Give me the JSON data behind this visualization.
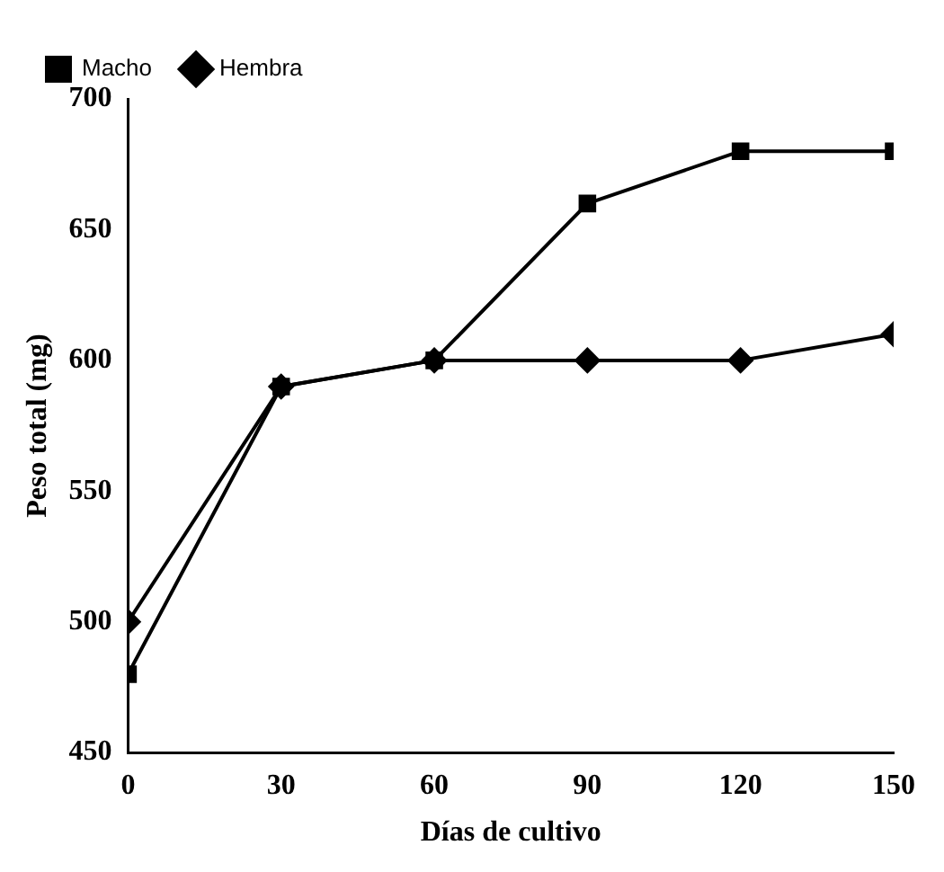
{
  "chart_data": {
    "type": "line",
    "xlabel": "Días de cultivo",
    "ylabel": "Peso total (mg)",
    "x": [
      0,
      30,
      60,
      90,
      120,
      150
    ],
    "series": [
      {
        "name": "Macho",
        "color": "#000000",
        "marker": "square",
        "values": [
          480,
          590,
          600,
          660,
          680,
          680
        ]
      },
      {
        "name": "Hembra",
        "color": "#000000",
        "marker": "diamond",
        "values": [
          500,
          590,
          600,
          600,
          600,
          610
        ]
      }
    ],
    "xlim": [
      0,
      150
    ],
    "xticks": [
      0,
      30,
      60,
      90,
      120,
      150
    ],
    "ylim": [
      450,
      700
    ],
    "yticks": [
      450,
      500,
      550,
      600,
      650,
      700
    ],
    "grid": false,
    "legend": "top left",
    "line_style": "solid"
  }
}
